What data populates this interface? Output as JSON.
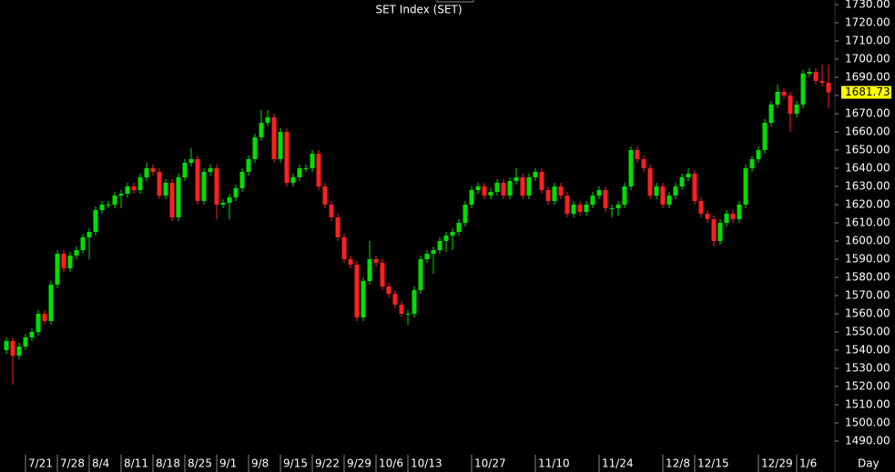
{
  "chart_data": {
    "type": "candlestick",
    "title": "SET Index (SET)",
    "x_label": "Day",
    "up_color": "#00e000",
    "down_color": "#ff2020",
    "ylim": [
      1484,
      1732.5
    ],
    "yticks": [
      {
        "value": 1490,
        "label": "1490.00"
      },
      {
        "value": 1500,
        "label": "1500.00"
      },
      {
        "value": 1510,
        "label": "1510.00"
      },
      {
        "value": 1520,
        "label": "1520.00"
      },
      {
        "value": 1530,
        "label": "1530.00"
      },
      {
        "value": 1540,
        "label": "1540.00"
      },
      {
        "value": 1550,
        "label": "1550.00"
      },
      {
        "value": 1560,
        "label": "1560.00"
      },
      {
        "value": 1570,
        "label": "1570.00"
      },
      {
        "value": 1580,
        "label": "1580.00"
      },
      {
        "value": 1590,
        "label": "1590.00"
      },
      {
        "value": 1600,
        "label": "1600.00"
      },
      {
        "value": 1610,
        "label": "1610.00"
      },
      {
        "value": 1620,
        "label": "1620.00"
      },
      {
        "value": 1630,
        "label": "1630.00"
      },
      {
        "value": 1640,
        "label": "1640.00"
      },
      {
        "value": 1650,
        "label": "1650.00"
      },
      {
        "value": 1660,
        "label": "1660.00"
      },
      {
        "value": 1670,
        "label": "1670.00"
      },
      {
        "value": 1680,
        "label": "1680.00"
      },
      {
        "value": 1690,
        "label": "1690.00"
      },
      {
        "value": 1700,
        "label": "1700.00"
      },
      {
        "value": 1710,
        "label": "1710.00"
      },
      {
        "value": 1720,
        "label": "1720.00"
      },
      {
        "value": 1730,
        "label": "1730.00"
      }
    ],
    "categories": [
      null,
      null,
      null,
      "7/21",
      null,
      null,
      null,
      null,
      "7/28",
      null,
      null,
      null,
      null,
      "8/4",
      null,
      null,
      null,
      null,
      "8/11",
      null,
      null,
      null,
      null,
      "8/18",
      null,
      null,
      null,
      null,
      "8/25",
      null,
      null,
      null,
      null,
      "9/1",
      null,
      null,
      null,
      null,
      "9/8",
      null,
      null,
      null,
      null,
      "9/15",
      null,
      null,
      null,
      null,
      "9/22",
      null,
      null,
      null,
      null,
      "9/29",
      null,
      null,
      null,
      null,
      "10/6",
      null,
      null,
      null,
      null,
      "10/13",
      null,
      null,
      null,
      null,
      null,
      null,
      null,
      null,
      null,
      "10/27",
      null,
      null,
      null,
      null,
      null,
      null,
      null,
      null,
      null,
      "11/10",
      null,
      null,
      null,
      null,
      null,
      null,
      null,
      null,
      null,
      "11/24",
      null,
      null,
      null,
      null,
      null,
      null,
      null,
      null,
      null,
      "12/8",
      null,
      null,
      null,
      null,
      "12/15",
      null,
      null,
      null,
      null,
      null,
      null,
      null,
      null,
      null,
      "12/29",
      null,
      null,
      null,
      null,
      null,
      "1/6",
      null,
      null,
      null,
      null,
      null
    ],
    "candles": [
      [
        1540,
        1547,
        1538,
        1545
      ],
      [
        1545,
        1547,
        1521,
        1537
      ],
      [
        1537,
        1544,
        1535,
        1542
      ],
      [
        1542,
        1549,
        1540,
        1547
      ],
      [
        1547,
        1552,
        1545,
        1550
      ],
      [
        1550,
        1562,
        1548,
        1560
      ],
      [
        1560,
        1562,
        1554,
        1556
      ],
      [
        1556,
        1578,
        1554,
        1576
      ],
      [
        1576,
        1595,
        1574,
        1593
      ],
      [
        1593,
        1595,
        1583,
        1585
      ],
      [
        1585,
        1594,
        1583,
        1592
      ],
      [
        1592,
        1597,
        1590,
        1595
      ],
      [
        1595,
        1604,
        1593,
        1602
      ],
      [
        1602,
        1607,
        1590,
        1605
      ],
      [
        1605,
        1619,
        1603,
        1617
      ],
      [
        1617,
        1622,
        1615,
        1620
      ],
      [
        1620,
        1622,
        1618,
        1620
      ],
      [
        1620,
        1627,
        1618,
        1625
      ],
      [
        1625,
        1628,
        1618,
        1626
      ],
      [
        1626,
        1632,
        1624,
        1630
      ],
      [
        1630,
        1632,
        1626,
        1628
      ],
      [
        1628,
        1637,
        1626,
        1635
      ],
      [
        1635,
        1643,
        1633,
        1640
      ],
      [
        1640,
        1642,
        1636,
        1638
      ],
      [
        1638,
        1640,
        1623,
        1625
      ],
      [
        1625,
        1634,
        1623,
        1632
      ],
      [
        1632,
        1634,
        1611,
        1613
      ],
      [
        1613,
        1637,
        1611,
        1635
      ],
      [
        1635,
        1645,
        1633,
        1643
      ],
      [
        1643,
        1651,
        1641,
        1645
      ],
      [
        1645,
        1647,
        1620,
        1622
      ],
      [
        1622,
        1640,
        1620,
        1638
      ],
      [
        1638,
        1642,
        1636,
        1640
      ],
      [
        1640,
        1642,
        1612,
        1620
      ],
      [
        1620,
        1623,
        1618,
        1621
      ],
      [
        1621,
        1626,
        1612,
        1624
      ],
      [
        1624,
        1631,
        1622,
        1629
      ],
      [
        1629,
        1640,
        1627,
        1638
      ],
      [
        1638,
        1647,
        1636,
        1645
      ],
      [
        1645,
        1659,
        1643,
        1657
      ],
      [
        1657,
        1672,
        1655,
        1665
      ],
      [
        1665,
        1672,
        1663,
        1668
      ],
      [
        1668,
        1670,
        1643,
        1645
      ],
      [
        1645,
        1662,
        1643,
        1660
      ],
      [
        1660,
        1662,
        1630,
        1632
      ],
      [
        1632,
        1637,
        1630,
        1635
      ],
      [
        1635,
        1642,
        1633,
        1640
      ],
      [
        1640,
        1642,
        1638,
        1640
      ],
      [
        1640,
        1650,
        1638,
        1648
      ],
      [
        1648,
        1650,
        1628,
        1630
      ],
      [
        1630,
        1632,
        1618,
        1620
      ],
      [
        1620,
        1622,
        1611,
        1613
      ],
      [
        1613,
        1615,
        1600,
        1602
      ],
      [
        1602,
        1604,
        1588,
        1590
      ],
      [
        1590,
        1592,
        1585,
        1587
      ],
      [
        1587,
        1589,
        1556,
        1558
      ],
      [
        1558,
        1580,
        1556,
        1578
      ],
      [
        1578,
        1600,
        1576,
        1590
      ],
      [
        1590,
        1592,
        1586,
        1588
      ],
      [
        1588,
        1590,
        1573,
        1575
      ],
      [
        1575,
        1577,
        1569,
        1571
      ],
      [
        1571,
        1573,
        1563,
        1565
      ],
      [
        1565,
        1567,
        1558,
        1560
      ],
      [
        1560,
        1562,
        1554,
        1560
      ],
      [
        1560,
        1575,
        1558,
        1573
      ],
      [
        1573,
        1592,
        1571,
        1590
      ],
      [
        1590,
        1595,
        1588,
        1593
      ],
      [
        1593,
        1597,
        1582,
        1595
      ],
      [
        1595,
        1602,
        1593,
        1600
      ],
      [
        1600,
        1605,
        1594,
        1603
      ],
      [
        1603,
        1607,
        1595,
        1605
      ],
      [
        1605,
        1612,
        1603,
        1610
      ],
      [
        1610,
        1622,
        1608,
        1620
      ],
      [
        1620,
        1630,
        1618,
        1628
      ],
      [
        1628,
        1632,
        1626,
        1630
      ],
      [
        1630,
        1632,
        1623,
        1625
      ],
      [
        1625,
        1629,
        1623,
        1627
      ],
      [
        1627,
        1634,
        1625,
        1632
      ],
      [
        1632,
        1634,
        1623,
        1625
      ],
      [
        1625,
        1635,
        1623,
        1633
      ],
      [
        1633,
        1640,
        1631,
        1635
      ],
      [
        1635,
        1637,
        1623,
        1625
      ],
      [
        1625,
        1637,
        1623,
        1635
      ],
      [
        1635,
        1640,
        1633,
        1638
      ],
      [
        1638,
        1640,
        1626,
        1628
      ],
      [
        1628,
        1630,
        1620,
        1622
      ],
      [
        1622,
        1632,
        1620,
        1630
      ],
      [
        1630,
        1632,
        1623,
        1625
      ],
      [
        1625,
        1627,
        1613,
        1615
      ],
      [
        1615,
        1622,
        1613,
        1620
      ],
      [
        1620,
        1622,
        1614,
        1616
      ],
      [
        1616,
        1622,
        1614,
        1620
      ],
      [
        1620,
        1627,
        1618,
        1625
      ],
      [
        1625,
        1630,
        1623,
        1628
      ],
      [
        1628,
        1630,
        1616,
        1618
      ],
      [
        1618,
        1620,
        1613,
        1618
      ],
      [
        1618,
        1622,
        1614,
        1620
      ],
      [
        1620,
        1632,
        1618,
        1630
      ],
      [
        1630,
        1652,
        1628,
        1650
      ],
      [
        1650,
        1652,
        1643,
        1645
      ],
      [
        1645,
        1647,
        1638,
        1640
      ],
      [
        1640,
        1642,
        1623,
        1625
      ],
      [
        1625,
        1632,
        1623,
        1630
      ],
      [
        1630,
        1632,
        1618,
        1620
      ],
      [
        1620,
        1627,
        1618,
        1625
      ],
      [
        1625,
        1632,
        1623,
        1630
      ],
      [
        1630,
        1637,
        1628,
        1635
      ],
      [
        1635,
        1640,
        1633,
        1637
      ],
      [
        1637,
        1639,
        1620,
        1622
      ],
      [
        1622,
        1624,
        1613,
        1615
      ],
      [
        1615,
        1617,
        1610,
        1612
      ],
      [
        1612,
        1614,
        1597,
        1600
      ],
      [
        1600,
        1612,
        1598,
        1610
      ],
      [
        1610,
        1617,
        1608,
        1615
      ],
      [
        1615,
        1617,
        1610,
        1612
      ],
      [
        1612,
        1622,
        1610,
        1620
      ],
      [
        1620,
        1642,
        1618,
        1640
      ],
      [
        1640,
        1647,
        1638,
        1645
      ],
      [
        1645,
        1652,
        1643,
        1650
      ],
      [
        1650,
        1667,
        1648,
        1665
      ],
      [
        1665,
        1677,
        1663,
        1675
      ],
      [
        1675,
        1686,
        1673,
        1682
      ],
      [
        1682,
        1684,
        1678,
        1680
      ],
      [
        1680,
        1682,
        1660,
        1670
      ],
      [
        1670,
        1677,
        1668,
        1675
      ],
      [
        1675,
        1694,
        1673,
        1692
      ],
      [
        1692,
        1695,
        1690,
        1693
      ],
      [
        1693,
        1695,
        1686,
        1688
      ],
      [
        1688,
        1697,
        1685,
        1687
      ],
      [
        1687,
        1697,
        1673,
        1681.73
      ]
    ]
  }
}
